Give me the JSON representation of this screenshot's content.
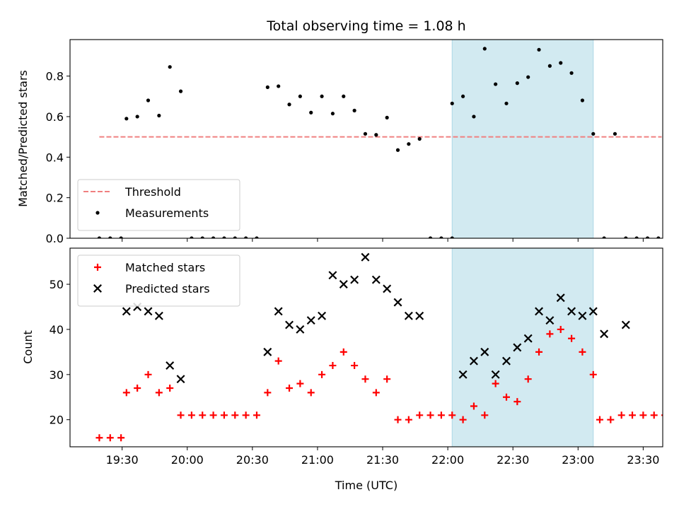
{
  "chart_data": {
    "type": "scatter",
    "title": "Total observing time = 1.08 h",
    "xlabel": "Time (UTC)",
    "x_unit": "minutes of UTC day",
    "x_tick_labels": [
      "19:30",
      "20:00",
      "20:30",
      "21:00",
      "21:30",
      "22:00",
      "22:30",
      "23:00",
      "23:30"
    ],
    "x_ticks": [
      1170,
      1200,
      1230,
      1260,
      1290,
      1320,
      1350,
      1380,
      1410
    ],
    "xlim": [
      1146,
      1419
    ],
    "shaded_interval": [
      1322,
      1387
    ],
    "shade_color": "#add8e6",
    "panels": [
      {
        "ylabel": "Matched/Predicted stars",
        "ylim": [
          0,
          0.98
        ],
        "y_ticks": [
          0.0,
          0.2,
          0.4,
          0.6,
          0.8
        ],
        "y_tick_labels": [
          "0.0",
          "0.2",
          "0.4",
          "0.6",
          "0.8"
        ],
        "legend_position": "lower-left",
        "threshold": {
          "name": "Threshold",
          "value": 0.5,
          "x_range": [
            1159.5,
            1418.5
          ],
          "color": "#f08080"
        },
        "series": [
          {
            "name": "Measurements",
            "marker": "dot",
            "color": "#000000",
            "points": [
              [
                1159.5,
                0.0
              ],
              [
                1164.5,
                0.0
              ],
              [
                1169.5,
                0.0
              ],
              [
                1172,
                0.59
              ],
              [
                1177,
                0.6
              ],
              [
                1182,
                0.68
              ],
              [
                1187,
                0.605
              ],
              [
                1192,
                0.845
              ],
              [
                1197,
                0.725
              ],
              [
                1202,
                0.0
              ],
              [
                1207,
                0.0
              ],
              [
                1212,
                0.0
              ],
              [
                1217,
                0.0
              ],
              [
                1222,
                0.0
              ],
              [
                1227,
                0.0
              ],
              [
                1232,
                0.0
              ],
              [
                1237,
                0.745
              ],
              [
                1242,
                0.75
              ],
              [
                1247,
                0.66
              ],
              [
                1252,
                0.7
              ],
              [
                1257,
                0.62
              ],
              [
                1262,
                0.7
              ],
              [
                1267,
                0.615
              ],
              [
                1272,
                0.7
              ],
              [
                1277,
                0.63
              ],
              [
                1282,
                0.515
              ],
              [
                1287,
                0.51
              ],
              [
                1292,
                0.595
              ],
              [
                1297,
                0.435
              ],
              [
                1302,
                0.465
              ],
              [
                1307,
                0.49
              ],
              [
                1312,
                0.0
              ],
              [
                1317,
                0.0
              ],
              [
                1322,
                0.0
              ],
              [
                1322,
                0.665
              ],
              [
                1327,
                0.7
              ],
              [
                1332,
                0.6
              ],
              [
                1337,
                0.935
              ],
              [
                1342,
                0.76
              ],
              [
                1347,
                0.665
              ],
              [
                1352,
                0.765
              ],
              [
                1357,
                0.795
              ],
              [
                1362,
                0.93
              ],
              [
                1367,
                0.85
              ],
              [
                1372,
                0.865
              ],
              [
                1377,
                0.815
              ],
              [
                1382,
                0.68
              ],
              [
                1387,
                0.515
              ],
              [
                1392,
                0.0
              ],
              [
                1397,
                0.515
              ],
              [
                1402,
                0.0
              ],
              [
                1407,
                0.0
              ],
              [
                1412,
                0.0
              ],
              [
                1417,
                0.0
              ]
            ]
          }
        ]
      },
      {
        "ylabel": "Count",
        "ylim": [
          14,
          58
        ],
        "y_ticks": [
          20,
          30,
          40,
          50
        ],
        "y_tick_labels": [
          "20",
          "30",
          "40",
          "50"
        ],
        "legend_position": "upper-left",
        "series": [
          {
            "name": "Matched stars",
            "marker": "plus",
            "color": "#ff0000",
            "points": [
              [
                1159.5,
                16
              ],
              [
                1164.5,
                16
              ],
              [
                1169.5,
                16
              ],
              [
                1172,
                26
              ],
              [
                1177,
                27
              ],
              [
                1182,
                30
              ],
              [
                1187,
                26
              ],
              [
                1192,
                27
              ],
              [
                1197,
                21
              ],
              [
                1202,
                21
              ],
              [
                1207,
                21
              ],
              [
                1212,
                21
              ],
              [
                1217,
                21
              ],
              [
                1222,
                21
              ],
              [
                1227,
                21
              ],
              [
                1232,
                21
              ],
              [
                1237,
                26
              ],
              [
                1242,
                33
              ],
              [
                1247,
                27
              ],
              [
                1252,
                28
              ],
              [
                1257,
                26
              ],
              [
                1262,
                30
              ],
              [
                1267,
                32
              ],
              [
                1272,
                35
              ],
              [
                1277,
                32
              ],
              [
                1282,
                29
              ],
              [
                1287,
                26
              ],
              [
                1292,
                29
              ],
              [
                1297,
                20
              ],
              [
                1302,
                20
              ],
              [
                1307,
                21
              ],
              [
                1312,
                21
              ],
              [
                1317,
                21
              ],
              [
                1322,
                21
              ],
              [
                1327,
                20
              ],
              [
                1332,
                23
              ],
              [
                1337,
                21
              ],
              [
                1342,
                28
              ],
              [
                1347,
                25
              ],
              [
                1352,
                24
              ],
              [
                1357,
                29
              ],
              [
                1362,
                35
              ],
              [
                1367,
                39
              ],
              [
                1372,
                40
              ],
              [
                1377,
                38
              ],
              [
                1382,
                35
              ],
              [
                1387,
                30
              ],
              [
                1390,
                20
              ],
              [
                1395,
                20
              ],
              [
                1400,
                21
              ],
              [
                1405,
                21
              ],
              [
                1410,
                21
              ],
              [
                1415,
                21
              ],
              [
                1420,
                21
              ]
            ]
          },
          {
            "name": "Predicted stars",
            "marker": "x",
            "color": "#000000",
            "points": [
              [
                1172,
                44
              ],
              [
                1177,
                45
              ],
              [
                1182,
                44
              ],
              [
                1187,
                43
              ],
              [
                1192,
                32
              ],
              [
                1197,
                29
              ],
              [
                1237,
                35
              ],
              [
                1242,
                44
              ],
              [
                1247,
                41
              ],
              [
                1252,
                40
              ],
              [
                1257,
                42
              ],
              [
                1262,
                43
              ],
              [
                1267,
                52
              ],
              [
                1272,
                50
              ],
              [
                1277,
                51
              ],
              [
                1282,
                56
              ],
              [
                1287,
                51
              ],
              [
                1292,
                49
              ],
              [
                1297,
                46
              ],
              [
                1302,
                43
              ],
              [
                1307,
                43
              ],
              [
                1327,
                30
              ],
              [
                1332,
                33
              ],
              [
                1337,
                35
              ],
              [
                1342,
                30
              ],
              [
                1347,
                33
              ],
              [
                1352,
                36
              ],
              [
                1357,
                38
              ],
              [
                1362,
                44
              ],
              [
                1367,
                42
              ],
              [
                1372,
                47
              ],
              [
                1377,
                44
              ],
              [
                1382,
                43
              ],
              [
                1387,
                44
              ],
              [
                1392,
                39
              ],
              [
                1402,
                41
              ]
            ]
          }
        ]
      }
    ]
  }
}
